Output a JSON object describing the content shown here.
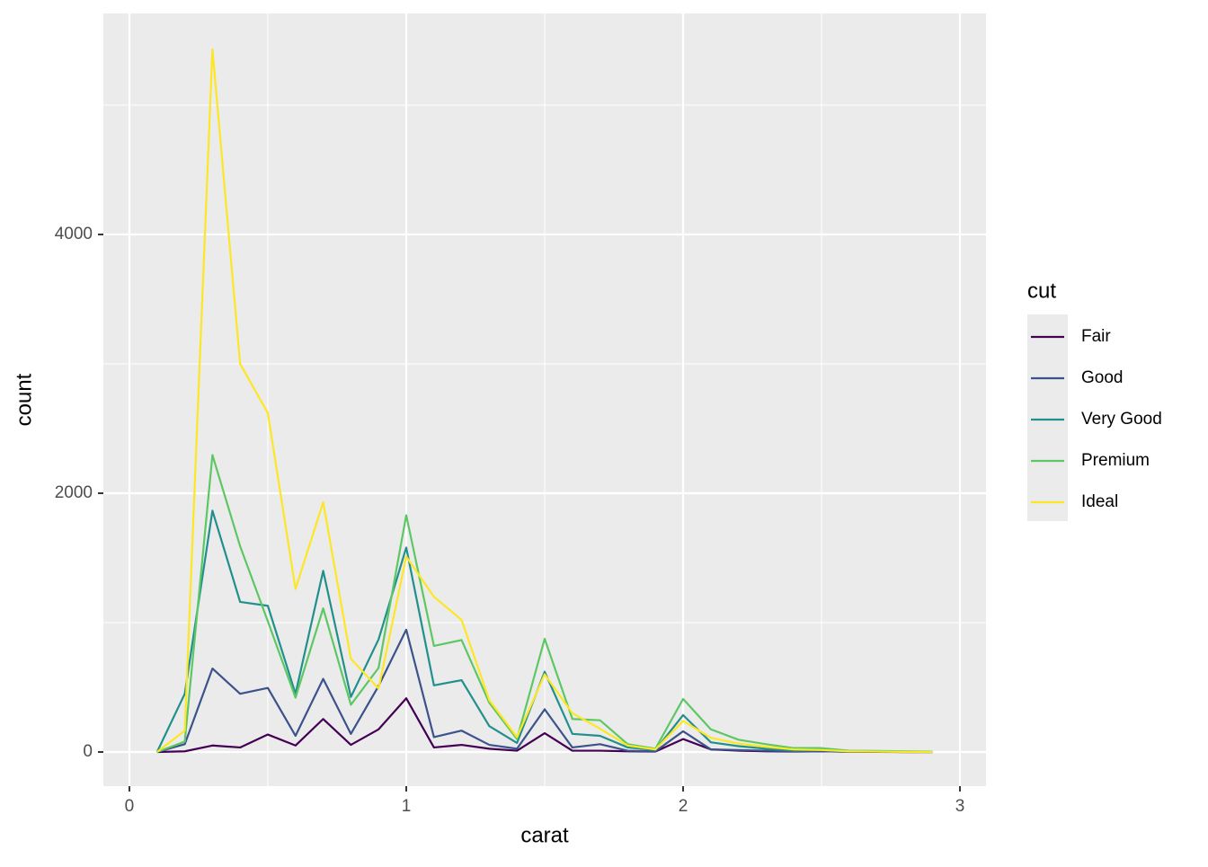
{
  "chart_data": {
    "type": "line",
    "x_label": "carat",
    "y_label": "count",
    "legend_title": "cut",
    "x": [
      0.1,
      0.2,
      0.3,
      0.4,
      0.5,
      0.6,
      0.7,
      0.8,
      0.9,
      1.0,
      1.1,
      1.2,
      1.3,
      1.4,
      1.5,
      1.6,
      1.7,
      1.8,
      1.9,
      2.0,
      2.1,
      2.2,
      2.3,
      2.4,
      2.5,
      2.6,
      2.7,
      2.8,
      2.9
    ],
    "series": [
      {
        "name": "Fair",
        "color": "#440154",
        "values": [
          0,
          5,
          50,
          35,
          135,
          50,
          255,
          55,
          175,
          415,
          35,
          55,
          25,
          10,
          145,
          10,
          10,
          5,
          3,
          100,
          20,
          10,
          5,
          3,
          5,
          2,
          1,
          0,
          0
        ]
      },
      {
        "name": "Good",
        "color": "#3B528B",
        "values": [
          0,
          60,
          645,
          450,
          495,
          125,
          565,
          140,
          510,
          945,
          115,
          165,
          55,
          25,
          330,
          35,
          60,
          10,
          5,
          160,
          20,
          15,
          10,
          5,
          5,
          2,
          2,
          0,
          0
        ]
      },
      {
        "name": "Very Good",
        "color": "#21908C",
        "values": [
          0,
          450,
          1865,
          1160,
          1130,
          450,
          1400,
          425,
          870,
          1580,
          515,
          555,
          200,
          70,
          620,
          140,
          125,
          35,
          15,
          285,
          75,
          45,
          25,
          10,
          15,
          5,
          3,
          2,
          1
        ]
      },
      {
        "name": "Premium",
        "color": "#5DC863",
        "values": [
          0,
          80,
          2295,
          1590,
          1010,
          420,
          1110,
          365,
          650,
          1830,
          820,
          865,
          380,
          100,
          875,
          255,
          245,
          60,
          25,
          410,
          175,
          95,
          60,
          30,
          30,
          10,
          8,
          5,
          3
        ]
      },
      {
        "name": "Ideal",
        "color": "#FDE725",
        "values": [
          0,
          165,
          5430,
          3000,
          2620,
          1260,
          1930,
          720,
          490,
          1510,
          1200,
          1020,
          400,
          115,
          600,
          300,
          180,
          50,
          20,
          240,
          110,
          65,
          40,
          20,
          15,
          5,
          3,
          1,
          0
        ]
      }
    ],
    "xlim": [
      -0.094,
      3.094
    ],
    "ylim": [
      -264,
      5708
    ],
    "xticks": [
      0,
      1,
      2,
      3
    ],
    "yticks": [
      0,
      2000,
      4000
    ],
    "x_minor_grid": [
      0.5,
      1.5,
      2.5
    ],
    "y_minor_grid": [
      1000,
      3000,
      5000
    ],
    "grid": true
  }
}
